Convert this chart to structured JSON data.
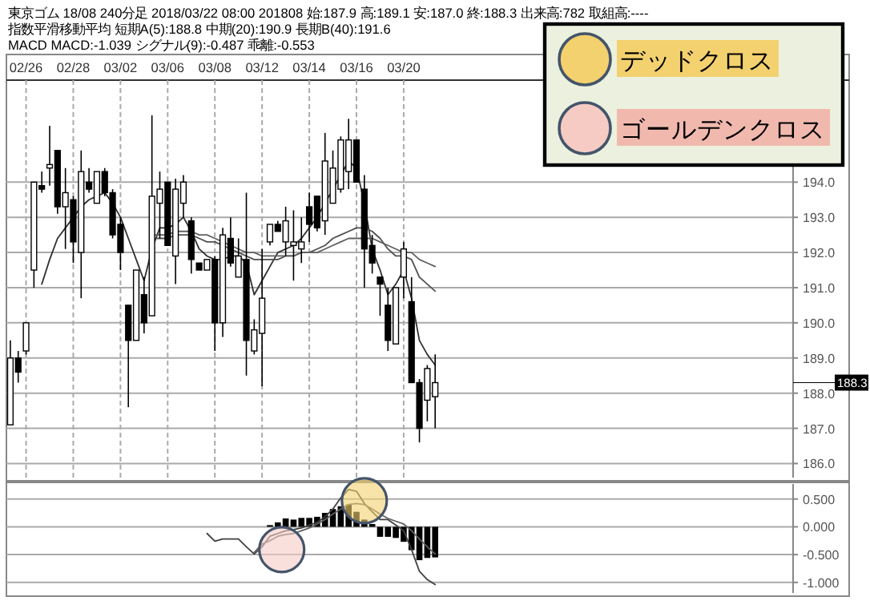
{
  "chart_data": [
    {
      "type": "candlestick",
      "title": "東京ゴム 18/08 240分足 2018/03/22 08:00 201808 始:187.9 高:189.1 安:187.0 終:188.3 出来高:782 取組高:----",
      "subtitle": "指数平滑移動平均 短期A(5):188.8 中期(20):190.9 長期B(40):191.6",
      "categories": [
        null,
        null,
        "02/26",
        null,
        null,
        null,
        null,
        null,
        "02/28",
        null,
        null,
        null,
        null,
        null,
        "03/02",
        null,
        null,
        null,
        null,
        null,
        "03/06",
        null,
        null,
        null,
        null,
        null,
        "03/08",
        null,
        null,
        null,
        null,
        null,
        "03/12",
        null,
        null,
        null,
        null,
        null,
        "03/14",
        null,
        null,
        null,
        null,
        null,
        "03/16",
        null,
        null,
        null,
        null,
        null,
        "03/20",
        null,
        null,
        null,
        null,
        null,
        null,
        null,
        null,
        null,
        null,
        null,
        null,
        null,
        null,
        null,
        null,
        null,
        null,
        null,
        null,
        null,
        null,
        null,
        null,
        null,
        null,
        null,
        null,
        null,
        null,
        null,
        null,
        null,
        null,
        null,
        null,
        null,
        null,
        null,
        null,
        null,
        null,
        null,
        null,
        null,
        null,
        null,
        null,
        null
      ],
      "ohlc": [
        [
          187.1,
          189.5,
          187.1,
          189.0
        ],
        [
          189.0,
          189.2,
          188.3,
          188.6
        ],
        [
          189.2,
          190.0,
          189.1,
          190.0
        ],
        [
          191.5,
          194.0,
          191.0,
          194.0
        ],
        [
          193.9,
          194.3,
          193.7,
          193.8
        ],
        [
          194.4,
          195.6,
          193.9,
          194.5
        ],
        [
          194.9,
          194.9,
          193.1,
          193.3
        ],
        [
          193.3,
          194.4,
          192.1,
          193.7
        ],
        [
          193.5,
          193.6,
          191.7,
          192.3
        ],
        [
          192.0,
          194.9,
          190.7,
          194.3
        ],
        [
          194.0,
          194.4,
          193.7,
          193.8
        ],
        [
          193.4,
          194.3,
          193.4,
          194.3
        ],
        [
          194.3,
          194.4,
          193.6,
          193.7
        ],
        [
          193.7,
          193.8,
          192.4,
          192.5
        ],
        [
          192.8,
          193.0,
          191.5,
          192.0
        ],
        [
          190.5,
          190.5,
          187.6,
          189.5
        ],
        [
          189.5,
          191.5,
          189.5,
          191.5
        ],
        [
          190.8,
          191.3,
          189.7,
          190.0
        ],
        [
          190.2,
          195.9,
          190.2,
          193.6
        ],
        [
          193.4,
          194.3,
          192.4,
          193.8
        ],
        [
          194.0,
          194.0,
          192.2,
          192.2
        ],
        [
          191.9,
          194.1,
          191.1,
          193.8
        ],
        [
          193.4,
          194.2,
          193.0,
          194.0
        ],
        [
          192.9,
          193.0,
          191.4,
          191.8
        ],
        [
          191.7,
          191.7,
          191.5,
          191.5
        ],
        [
          191.5,
          191.8,
          191.5,
          191.8
        ],
        [
          191.8,
          191.9,
          189.2,
          190.0
        ],
        [
          190.0,
          192.7,
          189.6,
          192.5
        ],
        [
          192.4,
          193.0,
          191.6,
          191.7
        ],
        [
          191.3,
          192.4,
          191.3,
          191.9
        ],
        [
          191.8,
          193.7,
          188.5,
          189.5
        ],
        [
          189.2,
          190.1,
          189.1,
          189.8
        ],
        [
          189.7,
          192.1,
          188.2,
          190.7
        ],
        [
          192.3,
          192.8,
          192.2,
          192.8
        ],
        [
          192.8,
          192.9,
          192.6,
          192.6
        ],
        [
          192.3,
          193.3,
          191.9,
          192.9
        ],
        [
          192.2,
          193.2,
          191.2,
          192.3
        ],
        [
          192.1,
          193.0,
          191.7,
          192.3
        ],
        [
          193.3,
          193.7,
          192.3,
          192.8
        ],
        [
          193.6,
          193.6,
          192.6,
          192.7
        ],
        [
          192.9,
          195.4,
          192.5,
          194.6
        ],
        [
          193.4,
          194.9,
          193.4,
          194.4
        ],
        [
          193.8,
          195.3,
          193.7,
          195.2
        ],
        [
          194.3,
          195.8,
          193.8,
          195.2
        ],
        [
          195.2,
          195.2,
          194.0,
          194.0
        ],
        [
          193.8,
          194.2,
          191.0,
          192.1
        ],
        [
          192.2,
          192.5,
          191.4,
          191.7
        ],
        [
          191.3,
          191.3,
          190.2,
          191.1
        ],
        [
          190.5,
          191.0,
          189.2,
          189.5
        ],
        [
          189.4,
          191.0,
          189.4,
          191.0
        ],
        [
          191.3,
          192.3,
          190.7,
          192.1
        ],
        [
          190.6,
          191.3,
          188.3,
          188.3
        ],
        [
          188.3,
          188.4,
          186.6,
          187.0
        ],
        [
          187.8,
          188.8,
          187.2,
          188.7
        ],
        [
          187.9,
          189.1,
          187.0,
          188.3
        ],
        null,
        null,
        null,
        null,
        null,
        null,
        null,
        null,
        null,
        null,
        null,
        null,
        null,
        null,
        null,
        null,
        null,
        null,
        null,
        null,
        null,
        null,
        null,
        null,
        null,
        null,
        null,
        null,
        null,
        null,
        null,
        null,
        null,
        null,
        null,
        null,
        null,
        null,
        null,
        null,
        null,
        null,
        null,
        null,
        null
      ],
      "series": [
        {
          "type": "line",
          "color": "#303030",
          "values": [
            null,
            null,
            null,
            null,
            191.1,
            191.8,
            192.4,
            192.7,
            193.0,
            193.3,
            193.5,
            193.6,
            193.7,
            193.4,
            193.0,
            192.4,
            191.8,
            191.2,
            192.1,
            192.7,
            192.7,
            192.8,
            193.0,
            192.6,
            192.1,
            191.9,
            191.8,
            191.8,
            191.9,
            191.9,
            191.7,
            190.8,
            191.2,
            191.6,
            192.0,
            192.1,
            192.2,
            192.4,
            192.7,
            193.0,
            193.4,
            193.8,
            194.2,
            194.6,
            194.4,
            193.4,
            192.1,
            191.5,
            190.8,
            191.1,
            191.5,
            190.7,
            189.5,
            189.1,
            188.8,
            null,
            null,
            null,
            null,
            null,
            null,
            null,
            null,
            null,
            null,
            null,
            null,
            null,
            null,
            null,
            null,
            null,
            null,
            null,
            null,
            null,
            null,
            null,
            null,
            null,
            null,
            null,
            null,
            null,
            null,
            null,
            null,
            null,
            null,
            null,
            null,
            null,
            null,
            null,
            null,
            null,
            null,
            null,
            null,
            null
          ]
        },
        {
          "type": "line",
          "color": "#505050",
          "values": [
            null,
            null,
            null,
            null,
            null,
            null,
            null,
            null,
            null,
            null,
            null,
            null,
            null,
            null,
            null,
            null,
            null,
            null,
            192.4,
            192.4,
            192.4,
            192.5,
            192.5,
            192.5,
            192.4,
            192.3,
            192.3,
            192.2,
            192.1,
            192.0,
            191.9,
            191.8,
            191.8,
            191.8,
            191.8,
            191.9,
            191.9,
            192.0,
            192.0,
            192.1,
            192.2,
            192.4,
            192.5,
            192.6,
            192.7,
            192.7,
            192.6,
            192.4,
            192.1,
            191.9,
            191.9,
            191.8,
            191.3,
            191.1,
            190.9,
            null,
            null,
            null,
            null,
            null,
            null,
            null,
            null,
            null,
            null,
            null,
            null,
            null,
            null,
            null,
            null,
            null,
            null,
            null,
            null,
            null,
            null,
            null,
            null,
            null,
            null,
            null,
            null,
            null,
            null,
            null,
            null,
            null,
            null,
            null,
            null,
            null,
            null,
            null,
            null,
            null,
            null,
            null,
            null,
            null
          ]
        },
        {
          "type": "line",
          "color": "#606060",
          "values": [
            null,
            null,
            null,
            null,
            null,
            null,
            null,
            null,
            null,
            null,
            null,
            null,
            null,
            null,
            null,
            null,
            null,
            null,
            192.5,
            192.5,
            192.5,
            192.6,
            192.6,
            192.6,
            192.5,
            192.5,
            192.4,
            192.3,
            192.2,
            192.1,
            192.0,
            192.0,
            191.9,
            191.9,
            191.9,
            191.9,
            191.9,
            192.0,
            192.0,
            192.0,
            192.1,
            192.2,
            192.3,
            192.4,
            192.4,
            192.4,
            192.4,
            192.3,
            192.2,
            192.1,
            192.0,
            192.0,
            191.8,
            191.7,
            191.6,
            null,
            null,
            null,
            null,
            null,
            null,
            null,
            null,
            null,
            null,
            null,
            null,
            null,
            null,
            null,
            null,
            null,
            null,
            null,
            null,
            null,
            null,
            null,
            null,
            null,
            null,
            null,
            null,
            null,
            null,
            null,
            null,
            null,
            null,
            null,
            null,
            null,
            null,
            null,
            null,
            null,
            null,
            null,
            null,
            null
          ]
        }
      ],
      "ylim": [
        185.6,
        196.9
      ],
      "yticks": [
        {
          "value": 186,
          "label": "186.0"
        },
        {
          "value": 187,
          "label": "187.0"
        },
        {
          "value": 188,
          "label": "188.0"
        },
        {
          "value": 189,
          "label": "189.0"
        },
        {
          "value": 190,
          "label": "190.0"
        },
        {
          "value": 191,
          "label": "191.0"
        },
        {
          "value": 192,
          "label": "192.0"
        },
        {
          "value": 193,
          "label": "193.0"
        },
        {
          "value": 194,
          "label": "194.0"
        }
      ],
      "grid": true,
      "annotations": [
        "MACD MACD:-1.039 シグナル(9):-0.487 乖離:-0.553",
        "デッドクロス",
        "ゴールデンクロス",
        "188.3"
      ]
    },
    {
      "type": "bar",
      "categories": [
        null,
        null,
        null,
        null,
        null,
        null,
        null,
        null,
        null,
        null,
        null,
        null,
        null,
        null,
        null,
        null,
        null,
        null,
        null,
        null,
        null,
        null,
        null,
        null,
        null,
        null,
        null,
        null,
        null,
        null,
        null,
        null,
        null,
        null,
        null,
        null,
        null,
        null,
        null,
        null,
        null,
        null,
        null,
        null,
        null,
        null,
        null,
        null,
        null,
        null,
        null,
        null,
        null,
        null,
        null,
        null,
        null,
        null,
        null,
        null,
        null,
        null,
        null,
        null,
        null,
        null,
        null,
        null,
        null,
        null,
        null,
        null,
        null,
        null,
        null,
        null,
        null,
        null,
        null,
        null,
        null,
        null,
        null,
        null,
        null,
        null,
        null,
        null,
        null,
        null,
        null,
        null,
        null,
        null,
        null,
        null,
        null,
        null,
        null,
        null
      ],
      "series": [
        {
          "type": "bar",
          "color": "#000000",
          "values": [
            null,
            null,
            null,
            null,
            null,
            null,
            null,
            null,
            null,
            null,
            null,
            null,
            null,
            null,
            null,
            null,
            null,
            null,
            null,
            null,
            null,
            null,
            null,
            null,
            null,
            null,
            null,
            null,
            null,
            null,
            null,
            null,
            null,
            0.03,
            0.08,
            0.15,
            0.13,
            0.16,
            0.16,
            0.18,
            0.25,
            0.32,
            0.37,
            0.4,
            0.27,
            0.13,
            0.05,
            -0.18,
            -0.18,
            -0.2,
            -0.27,
            -0.42,
            -0.6,
            -0.56,
            -0.55,
            null,
            null,
            null,
            null,
            null,
            null,
            null,
            null,
            null,
            null,
            null,
            null,
            null,
            null,
            null,
            null,
            null,
            null,
            null,
            null,
            null,
            null,
            null,
            null,
            null,
            null,
            null,
            null,
            null,
            null,
            null,
            null,
            null,
            null,
            null,
            null,
            null,
            null,
            null,
            null,
            null,
            null,
            null,
            null,
            null
          ]
        },
        {
          "type": "line",
          "color": "#404040",
          "values": [
            null,
            null,
            null,
            null,
            null,
            null,
            null,
            null,
            null,
            null,
            null,
            null,
            null,
            null,
            null,
            null,
            null,
            null,
            null,
            null,
            null,
            null,
            null,
            null,
            null,
            -0.12,
            -0.26,
            -0.22,
            -0.22,
            -0.22,
            -0.36,
            -0.49,
            -0.36,
            -0.17,
            -0.12,
            -0.07,
            -0.05,
            -0.02,
            0.03,
            0.08,
            0.18,
            0.32,
            0.52,
            0.67,
            0.64,
            0.42,
            0.27,
            0.13,
            0.13,
            0.03,
            -0.07,
            -0.41,
            -0.8,
            -0.95,
            -1.04,
            null,
            null,
            null,
            null,
            null,
            null,
            null,
            null,
            null,
            null,
            null,
            null,
            null,
            null,
            null,
            null,
            null,
            null,
            null,
            null,
            null,
            null,
            null,
            null,
            null,
            null,
            null,
            null,
            null,
            null,
            null,
            null,
            null,
            null,
            null,
            null,
            null,
            null,
            null,
            null,
            null,
            null,
            null,
            null,
            null
          ]
        },
        {
          "type": "line",
          "color": "#606060",
          "values": [
            null,
            null,
            null,
            null,
            null,
            null,
            null,
            null,
            null,
            null,
            null,
            null,
            null,
            null,
            null,
            null,
            null,
            null,
            null,
            null,
            null,
            null,
            null,
            null,
            null,
            null,
            null,
            null,
            null,
            null,
            null,
            -0.46,
            -0.31,
            -0.25,
            -0.17,
            -0.14,
            -0.12,
            -0.07,
            -0.02,
            0.05,
            0.13,
            0.23,
            0.32,
            0.4,
            0.42,
            0.4,
            0.32,
            0.23,
            0.15,
            0.1,
            0.05,
            -0.07,
            -0.22,
            -0.36,
            -0.49,
            null,
            null,
            null,
            null,
            null,
            null,
            null,
            null,
            null,
            null,
            null,
            null,
            null,
            null,
            null,
            null,
            null,
            null,
            null,
            null,
            null,
            null,
            null,
            null,
            null,
            null,
            null,
            null,
            null,
            null,
            null,
            null,
            null,
            null,
            null,
            null,
            null,
            null,
            null,
            null,
            null,
            null,
            null,
            null,
            null
          ]
        }
      ],
      "ylim": [
        -1.19,
        0.77
      ],
      "yticks": [
        {
          "value": 0.5,
          "label": "0.500"
        },
        {
          "value": 0,
          "label": "0.000"
        },
        {
          "value": -0.5,
          "label": "-0.500"
        },
        {
          "value": -1,
          "label": "-1.000"
        }
      ],
      "grid": "y",
      "tick_labels": "y"
    }
  ]
}
